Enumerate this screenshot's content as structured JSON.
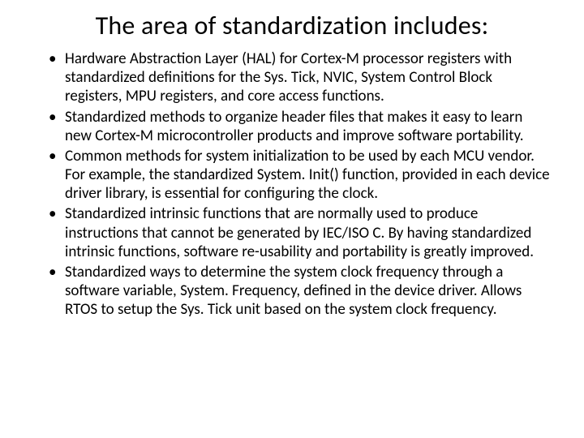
{
  "title": "The area of standardization includes:",
  "bullets": [
    "Hardware Abstraction Layer (HAL) for Cortex-M processor registers with standardized definitions for the Sys. Tick, NVIC, System Control Block registers, MPU registers, and core access functions.",
    "Standardized methods to organize header files that makes it easy to learn new Cortex-M microcontroller products and improve software portability.",
    "Common methods for system initialization to be used by each MCU vendor. For example, the standardized System. Init() function, provided in each device driver library, is essential for configuring the clock.",
    "Standardized intrinsic functions that are normally used to produce instructions that cannot be generated by IEC/ISO C. By having standardized intrinsic functions, software re-usability and portability is greatly improved.",
    "Standardized ways to determine the system clock frequency through a software variable, System. Frequency, defined in the device driver. Allows RTOS to setup the Sys. Tick unit based on the system clock frequency."
  ]
}
